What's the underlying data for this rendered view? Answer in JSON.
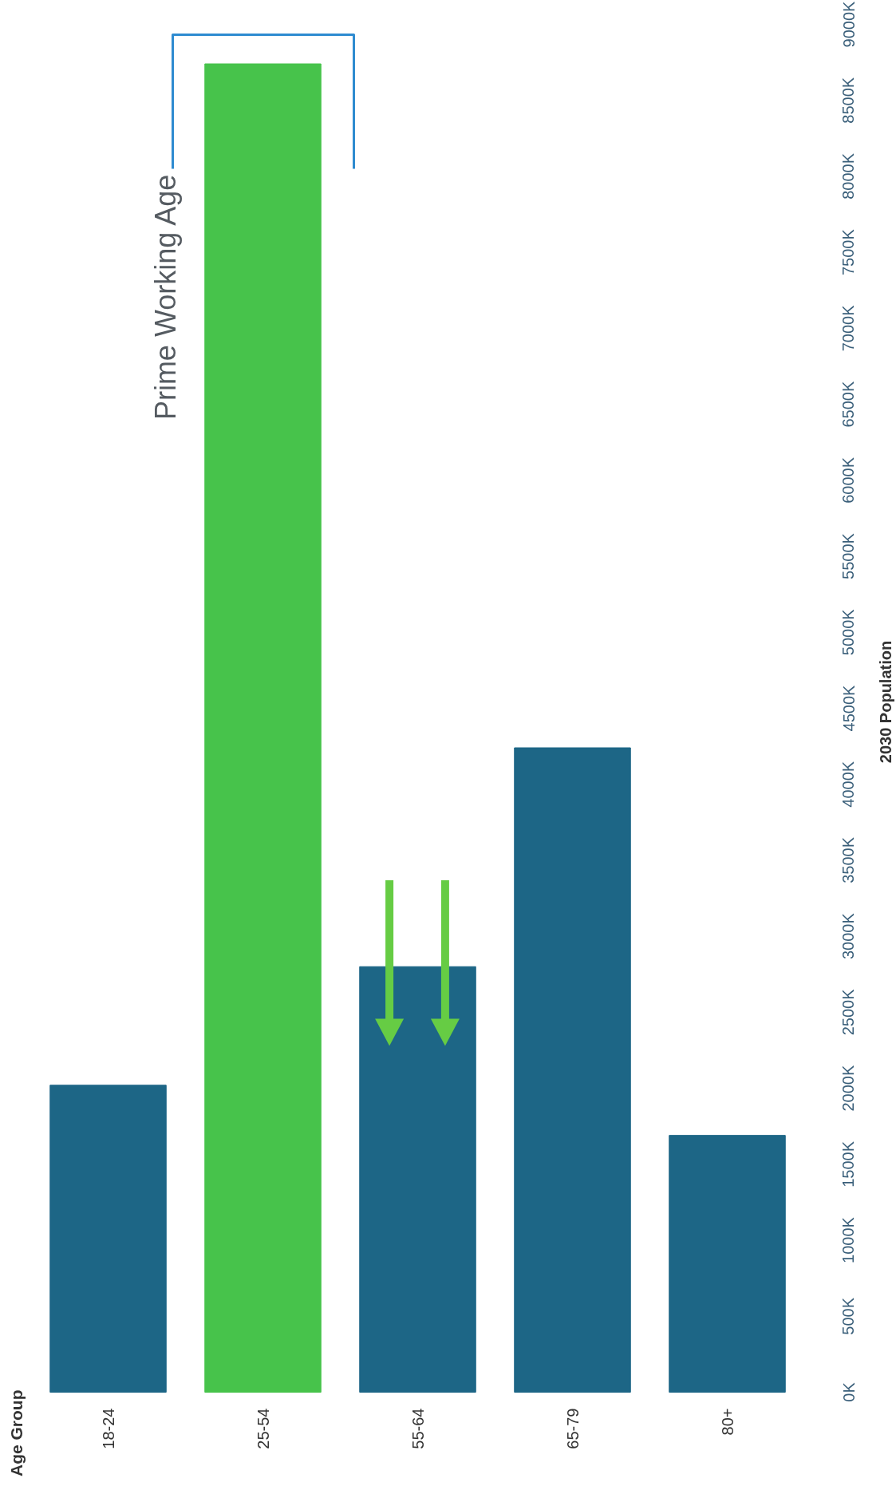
{
  "chart_data": {
    "type": "bar",
    "ylabel": "2030 Population",
    "categories": [
      "18-24",
      "25-54",
      "55-64",
      "65-79",
      "80+"
    ],
    "values": [
      2020,
      8740,
      2800,
      4240,
      1690
    ],
    "colors": [
      "#1d6686",
      "#47c34b",
      "#1d6686",
      "#1d6686",
      "#1d6686"
    ],
    "ylim": [
      0,
      9000
    ],
    "yticks": [
      {
        "value": 0,
        "label": "0K"
      },
      {
        "value": 500,
        "label": "500K"
      },
      {
        "value": 1000,
        "label": "1000K"
      },
      {
        "value": 1500,
        "label": "1500K"
      },
      {
        "value": 2000,
        "label": "2000K"
      },
      {
        "value": 2500,
        "label": "2500K"
      },
      {
        "value": 3000,
        "label": "3000K"
      },
      {
        "value": 3500,
        "label": "3500K"
      },
      {
        "value": 4000,
        "label": "4000K"
      },
      {
        "value": 4500,
        "label": "4500K"
      },
      {
        "value": 5000,
        "label": "5000K"
      },
      {
        "value": 5500,
        "label": "5500K"
      },
      {
        "value": 6000,
        "label": "6000K"
      },
      {
        "value": 6500,
        "label": "6500K"
      },
      {
        "value": 7000,
        "label": "7000K"
      },
      {
        "value": 7500,
        "label": "7500K"
      },
      {
        "value": 8000,
        "label": "8000K"
      },
      {
        "value": 8500,
        "label": "8500K"
      },
      {
        "value": 9000,
        "label": "9000K"
      }
    ],
    "annotations": [
      "Prime Working Age",
      "Age Group"
    ]
  }
}
